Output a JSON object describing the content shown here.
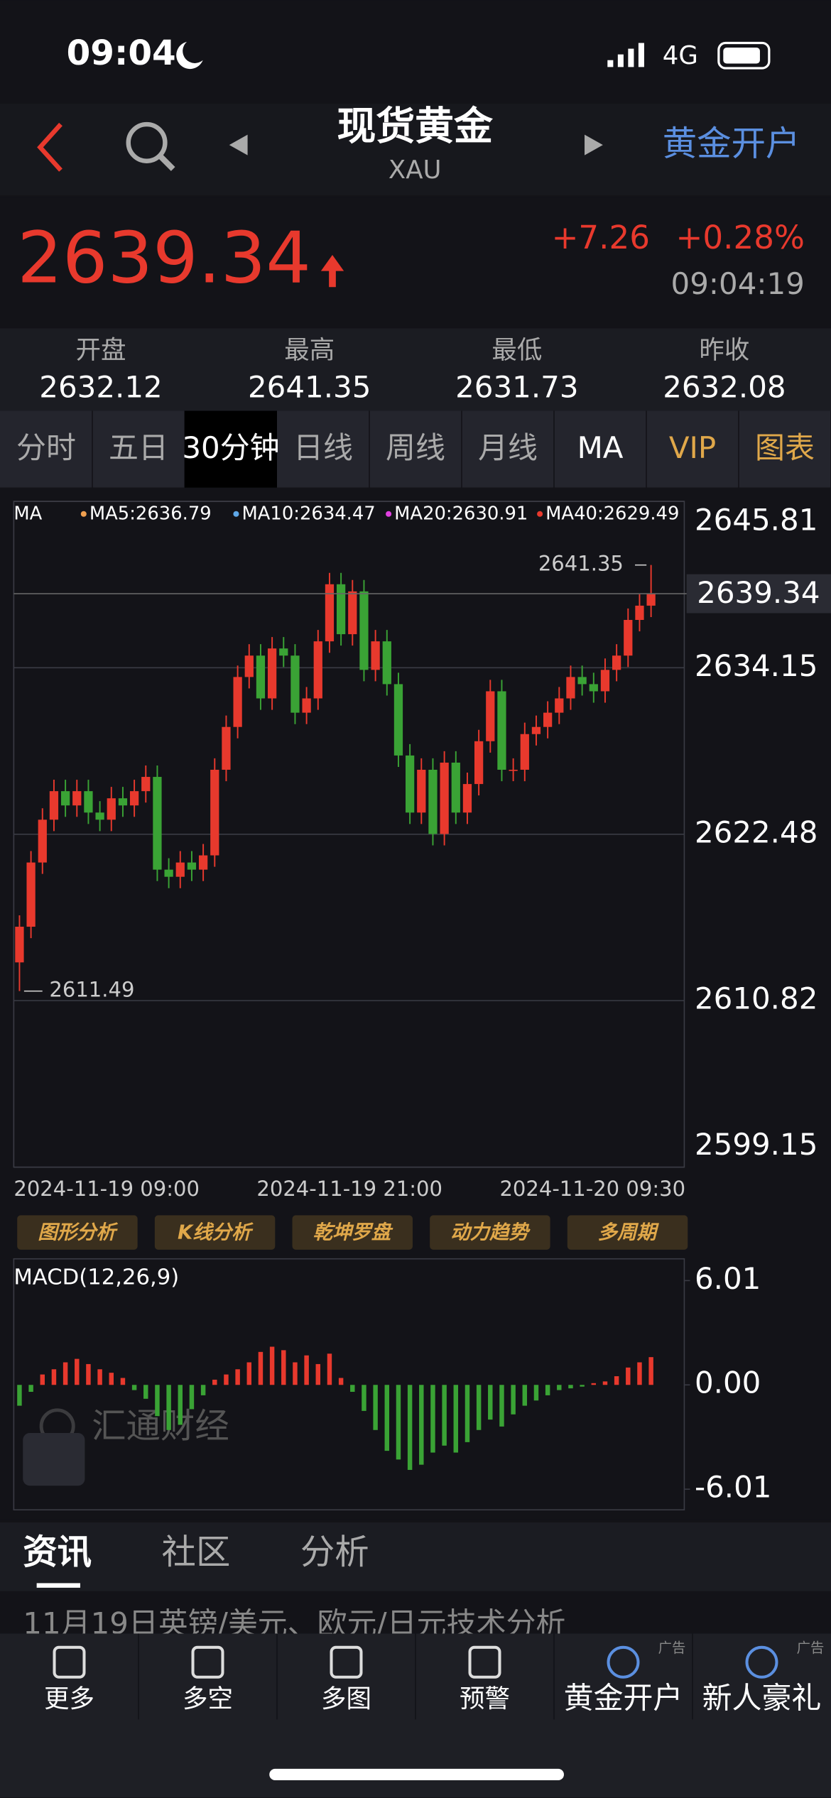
{
  "status": {
    "time": "09:04",
    "network": "4G"
  },
  "header": {
    "title": "现货黄金",
    "subtitle": "XAU",
    "action": "黄金开户"
  },
  "quote": {
    "price": "2639.34",
    "change": "+7.26",
    "change_pct": "+0.28%",
    "time": "09:04:19"
  },
  "stats": [
    {
      "label": "开盘",
      "value": "2632.12"
    },
    {
      "label": "最高",
      "value": "2641.35"
    },
    {
      "label": "最低",
      "value": "2631.73"
    },
    {
      "label": "昨收",
      "value": "2632.08"
    }
  ],
  "tabs": [
    "分时",
    "五日",
    "30分钟",
    "日线",
    "周线",
    "月线",
    "MA",
    "VIP",
    "图表"
  ],
  "ma_legend": [
    "MA",
    "MA5:2636.79",
    "MA10:2634.47",
    "MA20:2630.91",
    "MA40:2629.49"
  ],
  "chart_data": [
    {
      "type": "candlestick",
      "x_labels": [
        "2024-11-19 09:00",
        "2024-11-19 21:00",
        "2024-11-20 09:30"
      ],
      "open": [
        2613.5,
        2616,
        2620.5,
        2623.5,
        2625.5,
        2624.5,
        2625.5,
        2624,
        2623.5,
        2625,
        2624.5,
        2625.5,
        2626.5,
        2620,
        2619.5,
        2620.5,
        2620,
        2621,
        2627,
        2630,
        2633.5,
        2635,
        2632,
        2635.5,
        2635,
        2631,
        2632,
        2636,
        2640,
        2636.5,
        2639.5,
        2634,
        2636,
        2633,
        2628,
        2624,
        2627,
        2622.5,
        2627.5,
        2624,
        2626,
        2629,
        2632.5,
        2627,
        2627,
        2629.5,
        2630,
        2631,
        2632,
        2633.5,
        2633,
        2632.5,
        2634,
        2635,
        2637.5,
        2638.5
      ],
      "high": [
        2616.8,
        2621.3,
        2624.3,
        2626.3,
        2626.3,
        2626.3,
        2626.3,
        2624.8,
        2625.8,
        2625.8,
        2626.3,
        2627.3,
        2627.3,
        2620.8,
        2621.3,
        2621.3,
        2621.8,
        2627.8,
        2630.8,
        2634.3,
        2635.8,
        2635.8,
        2636.3,
        2636.3,
        2635.8,
        2632.8,
        2636.8,
        2640.8,
        2640.8,
        2640.3,
        2640.3,
        2636.8,
        2636.8,
        2633.8,
        2628.8,
        2627.8,
        2627.8,
        2628.3,
        2628.3,
        2626.8,
        2629.8,
        2633.3,
        2633.3,
        2627.8,
        2630.3,
        2630.8,
        2631.8,
        2632.8,
        2634.3,
        2634.3,
        2633.8,
        2634.8,
        2635.8,
        2638.3,
        2639.3,
        2641.35
      ],
      "low": [
        2611.49,
        2615.2,
        2619.7,
        2622.7,
        2623.7,
        2623.7,
        2623.2,
        2622.7,
        2622.7,
        2623.7,
        2623.7,
        2624.7,
        2619.2,
        2618.7,
        2618.7,
        2619.2,
        2619.2,
        2620.2,
        2626.2,
        2629.2,
        2632.7,
        2631.2,
        2631.2,
        2634.2,
        2630.2,
        2630.2,
        2631.2,
        2635.2,
        2635.7,
        2635.7,
        2633.2,
        2633.2,
        2632.2,
        2627.2,
        2623.2,
        2623.2,
        2621.7,
        2621.7,
        2623.2,
        2623.2,
        2625.2,
        2628.2,
        2626.2,
        2626.2,
        2626.2,
        2628.7,
        2629.2,
        2630.2,
        2631.2,
        2632.2,
        2631.7,
        2631.7,
        2633.2,
        2634.2,
        2636.7,
        2637.7
      ],
      "close": [
        2616,
        2620.5,
        2623.5,
        2625.5,
        2624.5,
        2625.5,
        2624,
        2623.5,
        2625,
        2624.5,
        2625.5,
        2626.5,
        2620,
        2619.5,
        2620.5,
        2620,
        2621,
        2627,
        2630,
        2633.5,
        2635,
        2632,
        2635.5,
        2635,
        2631,
        2632,
        2636,
        2640,
        2636.5,
        2639.5,
        2634,
        2636,
        2633,
        2628,
        2624,
        2627,
        2622.5,
        2627.5,
        2624,
        2626,
        2629,
        2632.5,
        2627,
        2627,
        2629.5,
        2630,
        2631,
        2632,
        2633.5,
        2633,
        2632.5,
        2634,
        2635,
        2637.5,
        2638.5,
        2639.34
      ],
      "up_color": "#e8392d",
      "down_color": "#3aa335",
      "ylim": [
        2599.15,
        2645.81
      ],
      "yticks": [
        2645.81,
        2634.15,
        2622.48,
        2610.82,
        2599.15
      ],
      "grid": true
    },
    {
      "type": "bar",
      "title": "MACD(12,26,9)",
      "values": [
        -1.2,
        -0.4,
        0.6,
        0.9,
        1.3,
        1.5,
        1.2,
        0.9,
        0.7,
        0.4,
        -0.3,
        -0.8,
        -1.8,
        -2.6,
        -2.3,
        -1.4,
        -0.6,
        0.3,
        0.6,
        0.9,
        1.3,
        1.9,
        2.2,
        2.0,
        1.3,
        1.7,
        1.2,
        1.8,
        0.4,
        -0.4,
        -1.5,
        -2.6,
        -3.8,
        -4.3,
        -4.9,
        -4.6,
        -3.9,
        -3.5,
        -3.9,
        -3.3,
        -2.6,
        -2.0,
        -2.4,
        -1.7,
        -1.2,
        -0.9,
        -0.6,
        -0.3,
        -0.2,
        -0.1,
        0.1,
        0.2,
        0.5,
        1.0,
        1.3,
        1.6
      ],
      "up_color": "#e8392d",
      "down_color": "#3aa335",
      "ylim": [
        -6.01,
        6.01
      ],
      "yticks": [
        6.01,
        {
          "value": 0,
          "label": "0.00"
        },
        {
          "value": -6.01,
          "label": "-6.01"
        }
      ]
    }
  ],
  "tools": [
    "图形分析",
    "K线分析",
    "乾坤罗盘",
    "动力趋势",
    "多周期"
  ],
  "watermark": "汇通财经",
  "news_tabs": [
    "资讯",
    "社区",
    "分析"
  ],
  "headline": "11月19日英镑/美元、欧元/日元技术分析",
  "nav": {
    "items": [
      "更多",
      "多空",
      "多图",
      "预警",
      "黄金开户",
      "新人豪礼"
    ],
    "ad_label": "广告"
  }
}
